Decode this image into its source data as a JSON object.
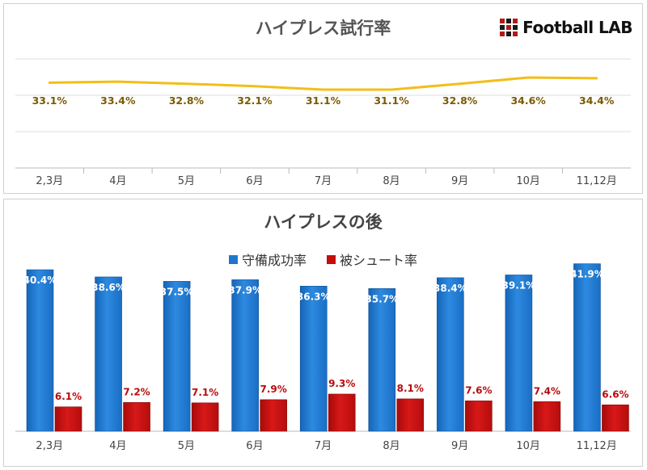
{
  "logo": {
    "text": "Football LAB"
  },
  "chart_data": [
    {
      "type": "line",
      "title": "ハイプレス試行率",
      "categories": [
        "2,3月",
        "4月",
        "5月",
        "6月",
        "7月",
        "8月",
        "9月",
        "10月",
        "11,12月"
      ],
      "series": [
        {
          "values": [
            33.1,
            33.4,
            32.8,
            32.1,
            31.1,
            31.1,
            32.8,
            34.6,
            34.4
          ],
          "labels": [
            "33.1%",
            "33.4%",
            "32.8%",
            "32.1%",
            "31.1%",
            "31.1%",
            "32.8%",
            "34.6%",
            "34.4%"
          ],
          "color": "#f2be1a",
          "label_color": "#7a5a00"
        }
      ],
      "grid": true
    },
    {
      "type": "bar",
      "title": "ハイプレスの後",
      "categories": [
        "2,3月",
        "4月",
        "5月",
        "6月",
        "7月",
        "8月",
        "9月",
        "10月",
        "11,12月"
      ],
      "legend_position": "top",
      "series": [
        {
          "name": "守備成功率",
          "color": "#1f77cc",
          "values": [
            40.4,
            38.6,
            37.5,
            37.9,
            36.3,
            35.7,
            38.4,
            39.1,
            41.9
          ],
          "labels": [
            "40.4%",
            "38.6%",
            "37.5%",
            "37.9%",
            "36.3%",
            "35.7%",
            "38.4%",
            "39.1%",
            "41.9%"
          ]
        },
        {
          "name": "被シュート率",
          "color": "#c40d0d",
          "values": [
            6.1,
            7.2,
            7.1,
            7.9,
            9.3,
            8.1,
            7.6,
            7.4,
            6.6
          ],
          "labels": [
            "6.1%",
            "7.2%",
            "7.1%",
            "7.9%",
            "9.3%",
            "8.1%",
            "7.6%",
            "7.4%",
            "6.6%"
          ]
        }
      ]
    }
  ]
}
